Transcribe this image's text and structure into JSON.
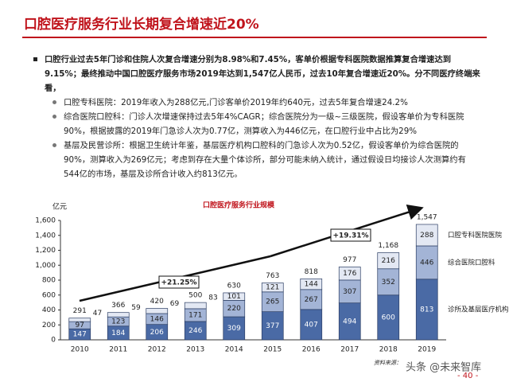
{
  "header": {
    "title": "口腔医疗服务行业长期复合增速近20%"
  },
  "bullets": {
    "main": "口腔行业过去5年门诊和住院人次复合增速分别为8.98%和7.45%，客单价根据专科医院数据推算复合增速达到9.15%；最终推动中国口腔医疗服务市场2019年达到1,547亿人民币，过去10年复合增速近20%。分不同医疗终端来看，",
    "sub": [
      "口腔专科医院：2019年收入为288亿元,门诊客单价2019年约640元，过去5年复合增速24.2%",
      "综合医院口腔科：门诊人次增速保持过去5年4%CAGR；综合医院分为一级~三级医院，假设客单价为专科医院90%，根据披露的2019年门急诊人次为0.77亿，测算收入为446亿元，在口腔行业中占比为29%",
      "基层及民营诊所：根据卫生统计年鉴，基层医疗机构口腔科的门急诊人次为0.52亿，假设客单价为综合医院的90%，测算收入为269亿元；考虑到存在大量个体诊所，部分可能未纳入统计，通过假设日均接诊人次测算约有544亿的市场，基层及诊所合计收入约813亿元。"
    ]
  },
  "chart_data": {
    "type": "stacked_bar",
    "title": "口腔医疗服务行业规模",
    "y_label": "亿元",
    "categories": [
      "2010",
      "2011",
      "2012",
      "2013",
      "2014",
      "2015",
      "2016",
      "2017",
      "2018",
      "2019"
    ],
    "series": [
      {
        "name": "诊所及基层医疗机构",
        "color": "#4a6aa5",
        "values": [
          147,
          184,
          206,
          246,
          309,
          377,
          407,
          494,
          600,
          813
        ]
      },
      {
        "name": "综合医院口腔科",
        "color": "#a3b4d6",
        "values": [
          97,
          123,
          146,
          171,
          220,
          265,
          267,
          307,
          352,
          446
        ]
      },
      {
        "name": "口腔专科医院医院",
        "color": "#e3e8f3",
        "values": [
          47,
          59,
          69,
          83,
          101,
          121,
          144,
          176,
          216,
          288
        ]
      }
    ],
    "totals": [
      291,
      366,
      420,
      500,
      630,
      763,
      818,
      977,
      1168,
      1547
    ],
    "total_labels": [
      "291",
      "366",
      "420",
      "500",
      "630",
      "763",
      "818",
      "977",
      "1,168",
      "1,547"
    ],
    "ylim": [
      0,
      1600
    ],
    "yticks": [
      0,
      200,
      400,
      600,
      800,
      {
        "value": 1000,
        "label": "1,000"
      },
      {
        "value": 1200,
        "label": "1,200"
      },
      {
        "value": 1400,
        "label": "1,400"
      },
      {
        "value": 1600,
        "label": "1,600"
      }
    ],
    "annotations": [
      "+21.25%",
      "+19.31%"
    ]
  },
  "footer": {
    "source": "资料来源：",
    "watermark": "头条 @未来智库",
    "page": "- 40 -"
  }
}
